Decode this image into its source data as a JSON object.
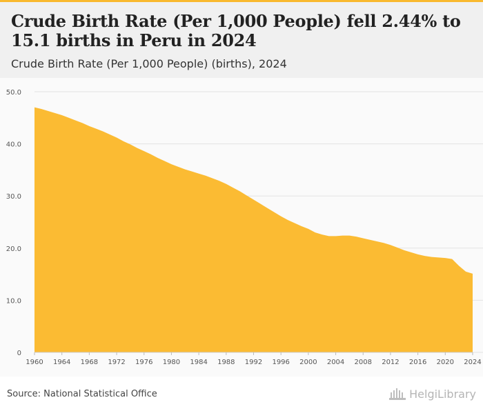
{
  "header": {
    "title": "Crude Birth Rate (Per 1,000 People) fell 2.44% to 15.1 births in Peru in 2024",
    "subtitle": "Crude Birth Rate (Per 1,000 People) (births), 2024"
  },
  "footer": {
    "source": "Source: National Statistical Office",
    "logo_text": "HelgiLibrary"
  },
  "colors": {
    "accent": "#f9b92e",
    "area_fill": "#fbbb33",
    "header_bg": "#f0f0f0",
    "plot_bg": "#fafafa",
    "grid": "#e3e3e3"
  },
  "chart_data": {
    "type": "area",
    "title": "Crude Birth Rate (Per 1,000 People) (births), 2024",
    "xlabel": "",
    "ylabel": "",
    "xlim": [
      1960,
      2024
    ],
    "ylim": [
      0,
      50
    ],
    "grid": true,
    "yticks": [
      {
        "value": 0,
        "label": "0"
      },
      {
        "value": 10,
        "label": "10.0"
      },
      {
        "value": 20,
        "label": "20.0"
      },
      {
        "value": 30,
        "label": "30.0"
      },
      {
        "value": 40,
        "label": "40.0"
      },
      {
        "value": 50,
        "label": "50.0"
      }
    ],
    "xticks": [
      "1960",
      "1964",
      "1968",
      "1972",
      "1976",
      "1980",
      "1984",
      "1988",
      "1992",
      "1996",
      "2000",
      "2004",
      "2008",
      "2012",
      "2016",
      "2020",
      "2024"
    ],
    "x": [
      1960,
      1961,
      1962,
      1963,
      1964,
      1965,
      1966,
      1967,
      1968,
      1969,
      1970,
      1971,
      1972,
      1973,
      1974,
      1975,
      1976,
      1977,
      1978,
      1979,
      1980,
      1981,
      1982,
      1983,
      1984,
      1985,
      1986,
      1987,
      1988,
      1989,
      1990,
      1991,
      1992,
      1993,
      1994,
      1995,
      1996,
      1997,
      1998,
      1999,
      2000,
      2001,
      2002,
      2003,
      2004,
      2005,
      2006,
      2007,
      2008,
      2009,
      2010,
      2011,
      2012,
      2013,
      2014,
      2015,
      2016,
      2017,
      2018,
      2019,
      2020,
      2021,
      2022,
      2023,
      2024
    ],
    "values": [
      47.0,
      46.7,
      46.3,
      45.9,
      45.5,
      45.0,
      44.5,
      44.0,
      43.4,
      42.9,
      42.4,
      41.8,
      41.2,
      40.5,
      39.9,
      39.2,
      38.6,
      38.0,
      37.3,
      36.7,
      36.1,
      35.6,
      35.1,
      34.7,
      34.3,
      33.9,
      33.4,
      32.9,
      32.3,
      31.6,
      30.9,
      30.1,
      29.3,
      28.5,
      27.7,
      26.9,
      26.1,
      25.4,
      24.8,
      24.2,
      23.7,
      23.0,
      22.6,
      22.3,
      22.3,
      22.4,
      22.4,
      22.2,
      21.9,
      21.6,
      21.3,
      21.0,
      20.6,
      20.1,
      19.6,
      19.2,
      18.8,
      18.5,
      18.3,
      18.2,
      18.1,
      17.9,
      16.6,
      15.5,
      15.1
    ]
  }
}
